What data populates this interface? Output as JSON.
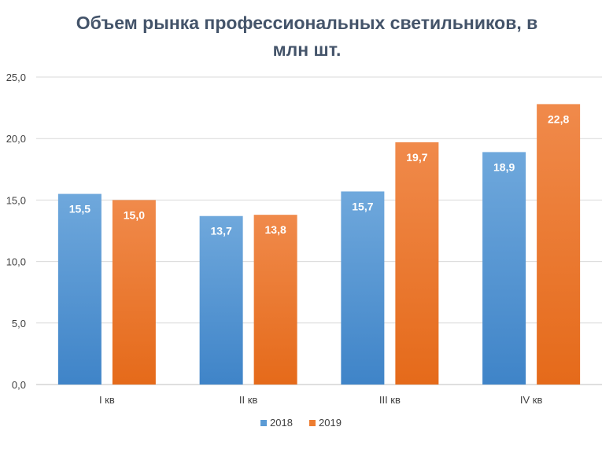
{
  "chart_data": {
    "type": "bar",
    "title_line1": "Объем рынка профессиональных светильников, в",
    "title_line2": "млн шт.",
    "categories": [
      "I кв",
      "II кв",
      "III кв",
      "IV кв"
    ],
    "series": [
      {
        "name": "2018",
        "values": [
          15.5,
          13.7,
          15.7,
          18.9
        ],
        "labels": [
          "15,5",
          "13,7",
          "15,7",
          "18,9"
        ],
        "color": "#5b9bd5"
      },
      {
        "name": "2019",
        "values": [
          15.0,
          13.8,
          19.7,
          22.8
        ],
        "labels": [
          "15,0",
          "13,8",
          "19,7",
          "22,8"
        ],
        "color": "#ed7d31"
      }
    ],
    "yticks": [
      "0,0",
      "5,0",
      "10,0",
      "15,0",
      "20,0",
      "25,0"
    ],
    "ylim": [
      0,
      25
    ],
    "grid": true,
    "legend": "bottom"
  }
}
